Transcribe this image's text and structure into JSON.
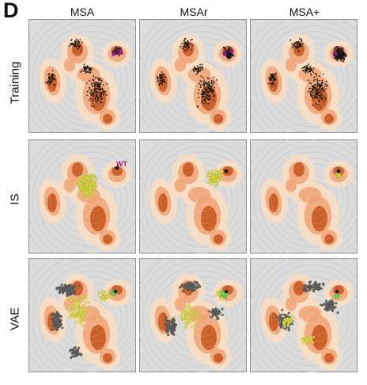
{
  "figure": {
    "panel_letter": "D",
    "columns": [
      "MSA",
      "MSAr",
      "MSA+"
    ],
    "rows": [
      "Training",
      "IS",
      "VAE"
    ],
    "annotation": "WT",
    "colors": {
      "panel_background": "#dcdcdc",
      "panel_border": "#8c8c8c",
      "density_light": "#f7dcc4",
      "density_mid": "#f0a273",
      "density_dark": "#c8581f",
      "contour": "#b8b8b8",
      "training_points": "#1a1a1a",
      "wt_marker": "#8b1a8b",
      "is_points": "#e8e84a",
      "vae_gray": "#6b6b6b",
      "vae_yellow": "#e8e84a",
      "vae_green": "#7fe05a"
    }
  }
}
